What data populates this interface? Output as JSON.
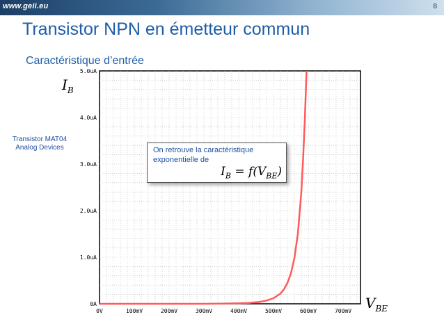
{
  "header": {
    "logo_text": "www.geii.eu",
    "page_number": "8"
  },
  "title": "Transistor NPN en émetteur commun",
  "subtitle": "Caractéristique d’entrée",
  "side_note": {
    "line1": "Transistor MAT04",
    "line2": "Analog Devices"
  },
  "callout": {
    "line1": "On retrouve la caractéristique",
    "line2": "exponentielle de",
    "formula_lhs": "I",
    "formula_sub1": "B",
    "formula_mid": " = f(V",
    "formula_sub2": "BE",
    "formula_end": ")"
  },
  "axis_labels": {
    "y_main": "I",
    "y_sub": "B",
    "x_main": "V",
    "x_sub": "BE"
  },
  "colors": {
    "curve": "#ff5a5a",
    "title": "#1f5da8",
    "grid": "#b8b8b8"
  },
  "chart_data": {
    "type": "line",
    "x_ticks": [
      "0V",
      "100mV",
      "200mV",
      "300mV",
      "400mV",
      "500mV",
      "600mV",
      "700mV"
    ],
    "y_ticks": [
      "0A",
      "1.0uA",
      "2.0uA",
      "3.0uA",
      "4.0uA",
      "5.0uA"
    ],
    "xlim": [
      0,
      750
    ],
    "ylim": [
      0,
      5
    ],
    "x_unit": "mV",
    "y_unit": "uA",
    "grid": true,
    "series": [
      {
        "x": [
          0,
          100,
          200,
          300,
          350,
          400,
          430,
          460,
          480,
          500,
          520,
          530,
          540,
          550,
          560,
          570,
          580,
          585,
          590,
          595
        ],
        "values": [
          0,
          0,
          0,
          0,
          0.005,
          0.01,
          0.02,
          0.04,
          0.07,
          0.12,
          0.22,
          0.31,
          0.45,
          0.65,
          0.98,
          1.5,
          2.4,
          3.1,
          3.95,
          5.0
        ]
      }
    ]
  }
}
